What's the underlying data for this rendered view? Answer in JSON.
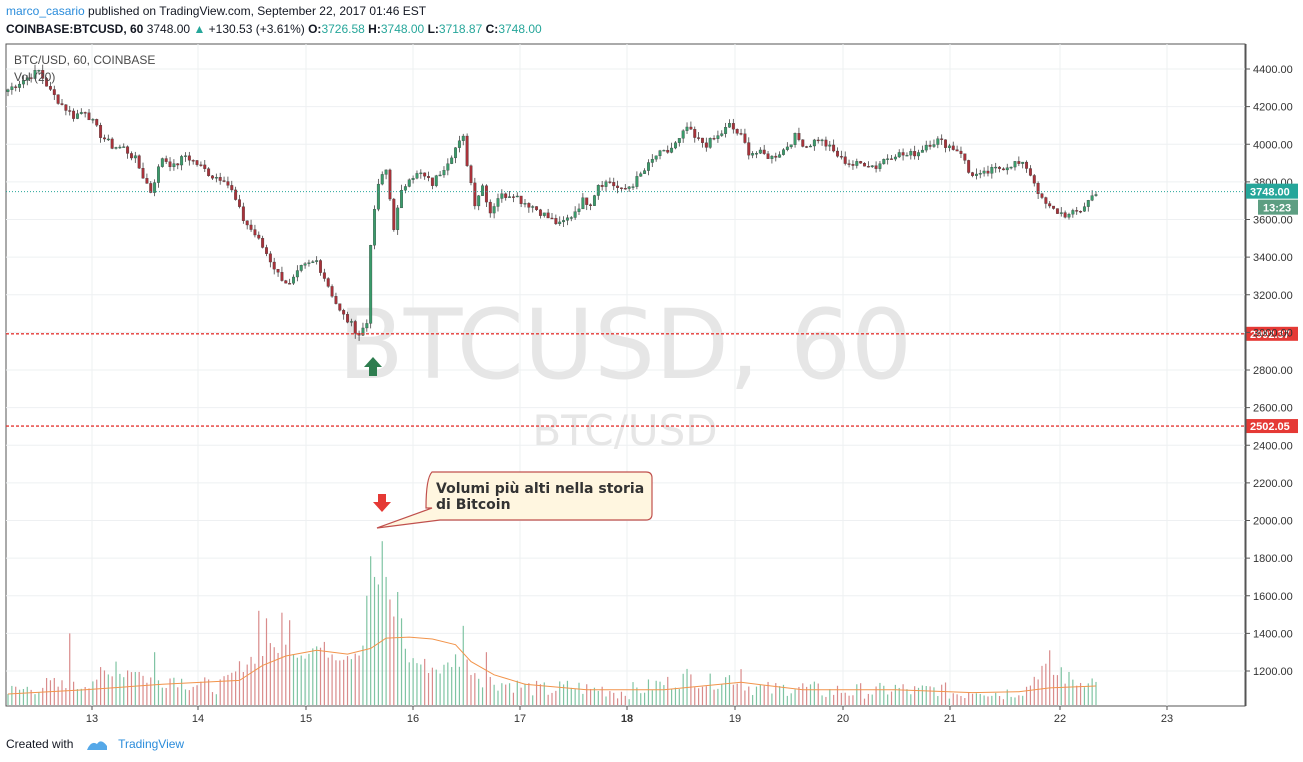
{
  "header": {
    "author": "marco_casario",
    "published_text": "published on TradingView.com, September 22, 2017 01:46 EST",
    "symbol_line": "COINBASE:BTCUSD, 60",
    "last": "3748.00",
    "change": "+130.53 (+3.61%)",
    "o_label": "O:",
    "o_value": "3726.58",
    "h_label": "H:",
    "h_value": "3748.00",
    "l_label": "L:",
    "l_value": "3718.87",
    "c_label": "C:",
    "c_value": "3748.00"
  },
  "footer": {
    "created_with": "Created with",
    "brand": "TradingView"
  },
  "chart_data": {
    "type": "candlestick",
    "legend_main": "BTC/USD, 60, COINBASE",
    "legend_vol": "Vol (20)",
    "watermark_big": "BTCUSD, 60",
    "watermark_small": "BTC/USD",
    "price_axis": {
      "ticks": [
        "4400.00",
        "4200.00",
        "4000.00",
        "3800.00",
        "3600.00",
        "3400.00",
        "3200.00",
        "3000.00",
        "2800.00",
        "2600.00",
        "2400.00",
        "2200.00",
        "2000.00",
        "1800.00",
        "1600.00",
        "1400.00",
        "1200.00"
      ],
      "ylim": [
        1040,
        4530
      ]
    },
    "time_axis": {
      "labels": [
        "13",
        "14",
        "15",
        "16",
        "17",
        "18",
        "19",
        "20",
        "21",
        "22",
        "23"
      ]
    },
    "last_price": {
      "value": 3748.0,
      "label": "3748.00",
      "countdown": "13:23",
      "color": "#26a69a"
    },
    "horizontal_lines": [
      {
        "value": 2992.37,
        "label": "2992.37",
        "color": "#e53935"
      },
      {
        "value": 2502.05,
        "label": "2502.05",
        "color": "#e53935"
      }
    ],
    "price_path": [
      [
        0,
        4290
      ],
      [
        3,
        4330
      ],
      [
        8,
        4390
      ],
      [
        11,
        4280
      ],
      [
        14,
        4210
      ],
      [
        17,
        4150
      ],
      [
        20,
        4180
      ],
      [
        24,
        4050
      ],
      [
        27,
        3990
      ],
      [
        30,
        3980
      ],
      [
        33,
        3920
      ],
      [
        35,
        3830
      ],
      [
        37,
        3750
      ],
      [
        40,
        3930
      ],
      [
        43,
        3880
      ],
      [
        46,
        3940
      ],
      [
        50,
        3880
      ],
      [
        53,
        3830
      ],
      [
        56,
        3820
      ],
      [
        58,
        3750
      ],
      [
        61,
        3600
      ],
      [
        64,
        3520
      ],
      [
        67,
        3420
      ],
      [
        70,
        3310
      ],
      [
        73,
        3250
      ],
      [
        76,
        3340
      ],
      [
        80,
        3380
      ],
      [
        83,
        3250
      ],
      [
        86,
        3110
      ],
      [
        89,
        3040
      ],
      [
        91,
        2990
      ],
      [
        93,
        3050
      ],
      [
        94,
        3480
      ],
      [
        96,
        3790
      ],
      [
        98,
        3860
      ],
      [
        100,
        3560
      ],
      [
        102,
        3740
      ],
      [
        104,
        3830
      ],
      [
        107,
        3840
      ],
      [
        110,
        3790
      ],
      [
        113,
        3880
      ],
      [
        116,
        3980
      ],
      [
        118,
        4030
      ],
      [
        119,
        3900
      ],
      [
        121,
        3690
      ],
      [
        123,
        3780
      ],
      [
        125,
        3640
      ],
      [
        127,
        3720
      ],
      [
        131,
        3740
      ],
      [
        133,
        3700
      ],
      [
        136,
        3670
      ],
      [
        140,
        3610
      ],
      [
        143,
        3570
      ],
      [
        146,
        3620
      ],
      [
        149,
        3700
      ],
      [
        151,
        3690
      ],
      [
        153,
        3790
      ],
      [
        156,
        3800
      ],
      [
        159,
        3750
      ],
      [
        162,
        3790
      ],
      [
        165,
        3860
      ],
      [
        168,
        3940
      ],
      [
        171,
        3960
      ],
      [
        174,
        4020
      ],
      [
        176,
        4090
      ],
      [
        178,
        4030
      ],
      [
        181,
        4000
      ],
      [
        184,
        4040
      ],
      [
        187,
        4100
      ],
      [
        190,
        4040
      ],
      [
        192,
        3960
      ],
      [
        195,
        3950
      ],
      [
        198,
        3930
      ],
      [
        201,
        3970
      ],
      [
        204,
        4040
      ],
      [
        207,
        3990
      ],
      [
        210,
        4030
      ],
      [
        213,
        3980
      ],
      [
        216,
        3920
      ],
      [
        219,
        3890
      ],
      [
        222,
        3900
      ],
      [
        225,
        3880
      ],
      [
        227,
        3920
      ],
      [
        230,
        3950
      ],
      [
        233,
        3940
      ],
      [
        236,
        3960
      ],
      [
        238,
        4000
      ],
      [
        241,
        4020
      ],
      [
        244,
        3990
      ],
      [
        247,
        3960
      ],
      [
        249,
        3850
      ],
      [
        252,
        3830
      ],
      [
        255,
        3860
      ],
      [
        258,
        3880
      ],
      [
        261,
        3900
      ],
      [
        264,
        3880
      ],
      [
        266,
        3800
      ],
      [
        268,
        3700
      ],
      [
        270,
        3660
      ],
      [
        272,
        3640
      ],
      [
        275,
        3620
      ],
      [
        278,
        3650
      ],
      [
        280,
        3700
      ],
      [
        282,
        3748
      ]
    ],
    "volume_path": [
      [
        0,
        1070
      ],
      [
        3,
        1080
      ],
      [
        8,
        1100
      ],
      [
        11,
        1110
      ],
      [
        14,
        1100
      ],
      [
        17,
        1090
      ],
      [
        20,
        1120
      ],
      [
        24,
        1160
      ],
      [
        27,
        1150
      ],
      [
        30,
        1180
      ],
      [
        33,
        1200
      ],
      [
        35,
        1150
      ],
      [
        37,
        1140
      ],
      [
        40,
        1130
      ],
      [
        43,
        1150
      ],
      [
        46,
        1120
      ],
      [
        50,
        1110
      ],
      [
        53,
        1100
      ],
      [
        56,
        1110
      ],
      [
        58,
        1150
      ],
      [
        61,
        1220
      ],
      [
        64,
        1260
      ],
      [
        67,
        1280
      ],
      [
        70,
        1310
      ],
      [
        73,
        1300
      ],
      [
        76,
        1280
      ],
      [
        80,
        1310
      ],
      [
        83,
        1290
      ],
      [
        86,
        1270
      ],
      [
        89,
        1280
      ],
      [
        91,
        1300
      ],
      [
        93,
        1350
      ],
      [
        94,
        1450
      ],
      [
        96,
        1800
      ],
      [
        98,
        1700
      ],
      [
        100,
        1450
      ],
      [
        102,
        1300
      ],
      [
        104,
        1250
      ],
      [
        107,
        1220
      ],
      [
        110,
        1200
      ],
      [
        113,
        1190
      ],
      [
        116,
        1250
      ],
      [
        118,
        1230
      ],
      [
        119,
        1220
      ],
      [
        121,
        1180
      ],
      [
        123,
        1140
      ],
      [
        125,
        1130
      ],
      [
        127,
        1120
      ],
      [
        131,
        1110
      ],
      [
        133,
        1100
      ],
      [
        136,
        1090
      ],
      [
        140,
        1080
      ],
      [
        143,
        1090
      ],
      [
        146,
        1100
      ],
      [
        149,
        1090
      ],
      [
        151,
        1080
      ],
      [
        153,
        1090
      ],
      [
        156,
        1080
      ],
      [
        159,
        1070
      ],
      [
        162,
        1080
      ],
      [
        165,
        1090
      ],
      [
        168,
        1110
      ],
      [
        171,
        1120
      ],
      [
        174,
        1130
      ],
      [
        176,
        1160
      ],
      [
        178,
        1140
      ],
      [
        181,
        1120
      ],
      [
        184,
        1130
      ],
      [
        187,
        1150
      ],
      [
        190,
        1130
      ],
      [
        192,
        1100
      ],
      [
        195,
        1090
      ],
      [
        198,
        1080
      ],
      [
        201,
        1090
      ],
      [
        204,
        1100
      ],
      [
        207,
        1090
      ],
      [
        210,
        1080
      ],
      [
        213,
        1070
      ],
      [
        216,
        1080
      ],
      [
        219,
        1070
      ],
      [
        222,
        1080
      ],
      [
        225,
        1070
      ],
      [
        227,
        1080
      ],
      [
        230,
        1090
      ],
      [
        233,
        1080
      ],
      [
        236,
        1070
      ],
      [
        238,
        1080
      ],
      [
        241,
        1090
      ],
      [
        244,
        1070
      ],
      [
        247,
        1060
      ],
      [
        249,
        1080
      ],
      [
        252,
        1090
      ],
      [
        255,
        1070
      ],
      [
        258,
        1060
      ],
      [
        261,
        1080
      ],
      [
        264,
        1090
      ],
      [
        266,
        1150
      ],
      [
        268,
        1200
      ],
      [
        270,
        1180
      ],
      [
        272,
        1160
      ],
      [
        275,
        1140
      ],
      [
        278,
        1120
      ],
      [
        280,
        1150
      ],
      [
        282,
        1110
      ]
    ],
    "volume_spikes": [
      [
        16,
        1400
      ],
      [
        28,
        1250
      ],
      [
        38,
        1300
      ],
      [
        65,
        1520
      ],
      [
        67,
        1480
      ],
      [
        71,
        1510
      ],
      [
        73,
        1470
      ],
      [
        93,
        1600
      ],
      [
        94,
        1810
      ],
      [
        95,
        1700
      ],
      [
        96,
        1660
      ],
      [
        97,
        1890
      ],
      [
        98,
        1700
      ],
      [
        101,
        1620
      ],
      [
        102,
        1480
      ],
      [
        118,
        1440
      ],
      [
        124,
        1300
      ],
      [
        190,
        1210
      ],
      [
        270,
        1310
      ],
      [
        273,
        1220
      ]
    ],
    "volume_ma": [
      [
        0,
        1078
      ],
      [
        20,
        1100
      ],
      [
        40,
        1130
      ],
      [
        60,
        1150
      ],
      [
        66,
        1230
      ],
      [
        72,
        1280
      ],
      [
        80,
        1310
      ],
      [
        88,
        1290
      ],
      [
        94,
        1320
      ],
      [
        98,
        1375
      ],
      [
        104,
        1380
      ],
      [
        110,
        1370
      ],
      [
        116,
        1340
      ],
      [
        120,
        1250
      ],
      [
        126,
        1180
      ],
      [
        134,
        1130
      ],
      [
        150,
        1100
      ],
      [
        170,
        1100
      ],
      [
        190,
        1140
      ],
      [
        206,
        1100
      ],
      [
        230,
        1100
      ],
      [
        250,
        1085
      ],
      [
        262,
        1090
      ],
      [
        270,
        1110
      ],
      [
        282,
        1120
      ]
    ],
    "bars_total": 283,
    "annotations": [
      {
        "text_line1": "Volumi più alti nella storia",
        "text_line2": "di Bitcoin"
      }
    ]
  }
}
